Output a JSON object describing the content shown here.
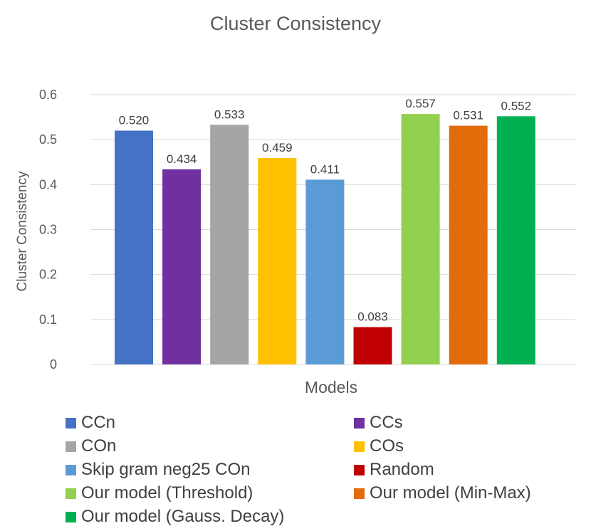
{
  "chart_data": {
    "type": "bar",
    "title": "Cluster Consistency",
    "xlabel": "Models",
    "ylabel": "Cluster Consistency",
    "ylim": [
      0,
      0.6
    ],
    "yticks": [
      "0",
      "0.1",
      "0.2",
      "0.3",
      "0.4",
      "0.5",
      "0.6"
    ],
    "grid": true,
    "legend_position": "bottom",
    "categories": [
      "CCn",
      "CCs",
      "COn",
      "COs",
      "Skip gram neg25 COn",
      "Random",
      "Our model (Threshold)",
      "Our model (Min-Max)",
      "Our model (Gauss. Decay)"
    ],
    "values": [
      0.52,
      0.434,
      0.533,
      0.459,
      0.411,
      0.083,
      0.557,
      0.531,
      0.552
    ],
    "data_labels": [
      "0.520",
      "0.434",
      "0.533",
      "0.459",
      "0.411",
      "0.083",
      "0.557",
      "0.531",
      "0.552"
    ],
    "colors": [
      "#4472C4",
      "#7030A0",
      "#A5A5A5",
      "#FFC000",
      "#5B9BD5",
      "#C00000",
      "#92D050",
      "#E36C0A",
      "#00B050"
    ]
  }
}
